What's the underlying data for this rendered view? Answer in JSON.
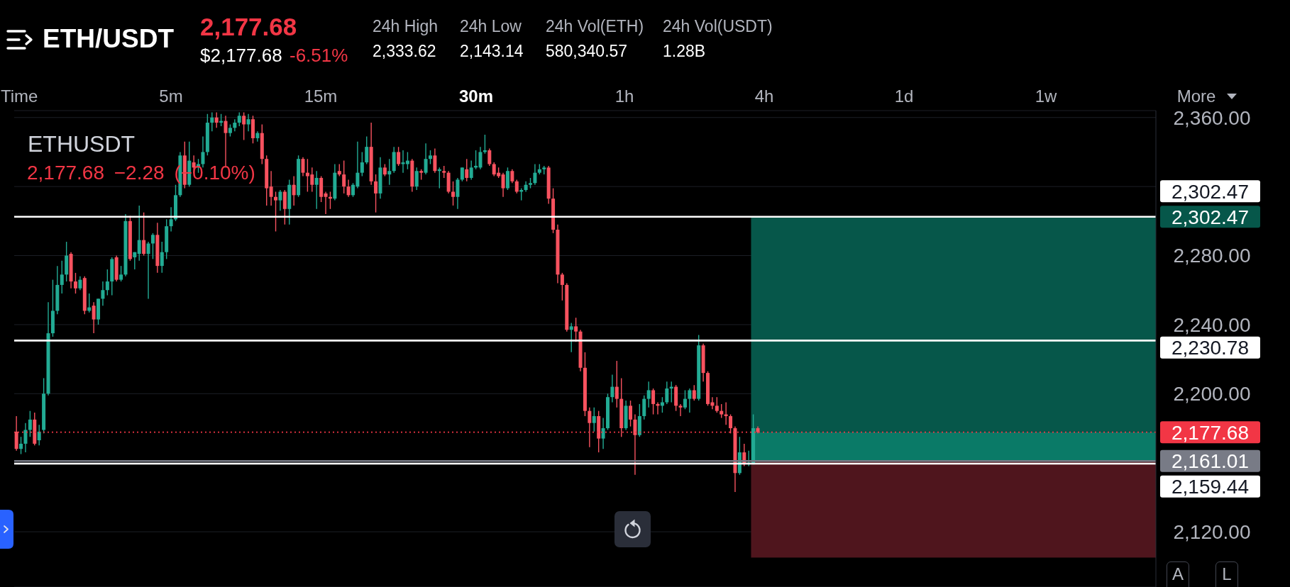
{
  "chart_data": {
    "type": "candlestick",
    "title": "ETH/USDT",
    "annotations": [
      "2,177.68",
      "$2,177.68",
      "-6.51%",
      "24h High",
      "2,333.62",
      "24h Low",
      "2,143.14",
      "24h Vol(ETH)",
      "580,340.57",
      "24h Vol(USDT)",
      "1.28B",
      "Time",
      "5m",
      "15m",
      "30m",
      "1h",
      "4h",
      "1d",
      "1w",
      "More",
      "ETHUSDT",
      "2,177.68 −2.28 (−0.10%)",
      "A",
      "L"
    ],
    "categories": [
      null,
      null,
      null,
      null,
      null,
      null,
      null,
      null,
      null,
      null,
      null,
      null,
      null,
      null,
      null,
      null,
      null,
      null,
      null,
      null,
      null,
      null,
      null,
      null,
      null,
      null,
      null,
      null,
      null,
      null,
      null,
      null,
      null,
      null,
      null,
      null,
      null,
      null,
      null,
      null,
      null,
      null,
      null,
      null,
      null,
      null,
      null,
      null,
      null,
      null,
      null,
      null,
      null,
      null,
      null,
      null,
      null,
      null,
      null,
      null,
      null,
      null,
      null,
      null,
      null,
      null,
      null,
      null,
      null,
      null,
      null,
      null,
      null,
      null,
      null,
      null,
      null,
      null,
      null,
      null,
      null,
      null,
      null,
      null,
      null,
      null,
      null,
      null,
      null,
      null,
      null,
      null,
      null,
      null,
      null,
      null,
      null,
      null,
      null,
      null,
      null,
      null,
      null,
      null,
      null,
      null,
      null,
      null,
      null,
      null,
      null,
      null,
      null,
      null,
      null,
      null,
      null,
      null,
      null,
      null,
      null,
      null,
      null,
      null,
      null,
      null,
      null,
      null,
      null,
      null,
      null,
      null,
      null,
      null,
      null,
      null,
      null,
      null,
      null,
      null,
      null,
      null,
      null,
      null,
      null,
      null,
      null,
      null,
      null,
      null,
      null,
      null,
      null,
      null,
      null,
      null,
      null,
      null,
      null,
      null,
      null,
      null,
      null,
      null,
      null,
      null,
      null,
      null,
      null,
      null,
      null,
      null,
      null,
      null,
      null,
      null,
      null,
      null,
      null,
      null,
      null,
      null,
      null,
      null,
      null,
      null,
      null,
      null,
      null,
      null,
      null,
      null,
      null,
      null,
      null,
      null,
      null,
      null,
      null,
      null,
      null,
      null,
      null,
      null,
      null,
      null,
      null,
      null,
      null,
      null,
      null,
      null,
      null,
      null,
      null,
      null,
      null,
      null,
      null,
      null,
      null,
      null,
      null,
      null,
      null,
      null,
      null,
      null,
      null,
      null,
      null,
      null,
      null,
      null,
      null,
      null,
      null,
      null,
      null,
      null,
      null,
      null,
      null,
      null,
      null,
      null,
      null,
      null,
      null,
      null,
      null
    ],
    "ohlc": [
      [
        2178,
        2187,
        2167,
        2168
      ],
      [
        2168,
        2175,
        2165,
        2171
      ],
      [
        2171,
        2183,
        2166,
        2179
      ],
      [
        2179,
        2190,
        2175,
        2185
      ],
      [
        2185,
        2189,
        2170,
        2171
      ],
      [
        2173,
        2182,
        2170,
        2178
      ],
      [
        2179,
        2209,
        2177,
        2200
      ],
      [
        2200,
        2253,
        2199,
        2235
      ],
      [
        2235,
        2266,
        2233,
        2248
      ],
      [
        2248,
        2274,
        2246,
        2263
      ],
      [
        2263,
        2277,
        2258,
        2269
      ],
      [
        2269,
        2288,
        2265,
        2280
      ],
      [
        2281,
        2282,
        2261,
        2265
      ],
      [
        2265,
        2270,
        2258,
        2261
      ],
      [
        2261,
        2268,
        2260,
        2266
      ],
      [
        2267,
        2268,
        2246,
        2248
      ],
      [
        2248,
        2258,
        2247,
        2250
      ],
      [
        2251,
        2253,
        2235,
        2243
      ],
      [
        2243,
        2255,
        2240,
        2255
      ],
      [
        2255,
        2265,
        2251,
        2260
      ],
      [
        2260,
        2272,
        2257,
        2265
      ],
      [
        2265,
        2279,
        2257,
        2278
      ],
      [
        2279,
        2280,
        2265,
        2266
      ],
      [
        2266,
        2274,
        2265,
        2269
      ],
      [
        2269,
        2304,
        2268,
        2300
      ],
      [
        2300,
        2303,
        2277,
        2278
      ],
      [
        2279,
        2282,
        2272,
        2282
      ],
      [
        2281,
        2309,
        2277,
        2289
      ],
      [
        2289,
        2305,
        2280,
        2281
      ],
      [
        2281,
        2288,
        2255,
        2287
      ],
      [
        2287,
        2293,
        2278,
        2292
      ],
      [
        2292,
        2299,
        2270,
        2274
      ],
      [
        2274,
        2288,
        2270,
        2282
      ],
      [
        2282,
        2301,
        2278,
        2297
      ],
      [
        2297,
        2308,
        2294,
        2301
      ],
      [
        2301,
        2321,
        2300,
        2315
      ],
      [
        2315,
        2340,
        2314,
        2338
      ],
      [
        2338,
        2346,
        2319,
        2321
      ],
      [
        2321,
        2346,
        2320,
        2335
      ],
      [
        2334,
        2338,
        2328,
        2331
      ],
      [
        2331,
        2336,
        2328,
        2333
      ],
      [
        2333,
        2349,
        2331,
        2340
      ],
      [
        2340,
        2362,
        2338,
        2357
      ],
      [
        2357,
        2363,
        2352,
        2360
      ],
      [
        2360,
        2363,
        2354,
        2357
      ],
      [
        2357,
        2362,
        2355,
        2358
      ],
      [
        2358,
        2361,
        2331,
        2351
      ],
      [
        2351,
        2356,
        2349,
        2354
      ],
      [
        2354,
        2359,
        2352,
        2357
      ],
      [
        2357,
        2363,
        2355,
        2361
      ],
      [
        2361,
        2363,
        2347,
        2356
      ],
      [
        2356,
        2362,
        2352,
        2359
      ],
      [
        2359,
        2361,
        2345,
        2348
      ],
      [
        2348,
        2352,
        2346,
        2351
      ],
      [
        2351,
        2356,
        2333,
        2336
      ],
      [
        2336,
        2338,
        2309,
        2319
      ],
      [
        2320,
        2329,
        2309,
        2314
      ],
      [
        2314,
        2317,
        2294,
        2312
      ],
      [
        2312,
        2318,
        2306,
        2317
      ],
      [
        2317,
        2318,
        2298,
        2307
      ],
      [
        2307,
        2324,
        2298,
        2321
      ],
      [
        2321,
        2326,
        2309,
        2315
      ],
      [
        2315,
        2338,
        2314,
        2336
      ],
      [
        2336,
        2337,
        2326,
        2328
      ],
      [
        2328,
        2336,
        2317,
        2326
      ],
      [
        2327,
        2331,
        2317,
        2321
      ],
      [
        2321,
        2329,
        2307,
        2325
      ],
      [
        2325,
        2326,
        2311,
        2314
      ],
      [
        2316,
        2317,
        2304,
        2314
      ],
      [
        2314,
        2317,
        2307,
        2313
      ],
      [
        2313,
        2333,
        2312,
        2328
      ],
      [
        2329,
        2333,
        2326,
        2327
      ],
      [
        2327,
        2335,
        2316,
        2320
      ],
      [
        2320,
        2324,
        2314,
        2315
      ],
      [
        2315,
        2322,
        2314,
        2321
      ],
      [
        2320,
        2346,
        2319,
        2328
      ],
      [
        2328,
        2340,
        2326,
        2334
      ],
      [
        2334,
        2349,
        2333,
        2343
      ],
      [
        2343,
        2357,
        2321,
        2323
      ],
      [
        2323,
        2327,
        2305,
        2316
      ],
      [
        2316,
        2337,
        2313,
        2331
      ],
      [
        2331,
        2333,
        2326,
        2327
      ],
      [
        2327,
        2336,
        2321,
        2329
      ],
      [
        2329,
        2343,
        2328,
        2340
      ],
      [
        2340,
        2343,
        2332,
        2333
      ],
      [
        2333,
        2341,
        2328,
        2334
      ],
      [
        2333,
        2340,
        2330,
        2335
      ],
      [
        2335,
        2336,
        2317,
        2320
      ],
      [
        2320,
        2331,
        2318,
        2329
      ],
      [
        2329,
        2330,
        2324,
        2328
      ],
      [
        2328,
        2345,
        2327,
        2336
      ],
      [
        2336,
        2341,
        2333,
        2338
      ],
      [
        2338,
        2342,
        2328,
        2329
      ],
      [
        2329,
        2331,
        2319,
        2330
      ],
      [
        2329,
        2332,
        2325,
        2328
      ],
      [
        2328,
        2329,
        2316,
        2317
      ],
      [
        2317,
        2323,
        2309,
        2314
      ],
      [
        2314,
        2325,
        2307,
        2324
      ],
      [
        2324,
        2331,
        2323,
        2331
      ],
      [
        2330,
        2336,
        2323,
        2325
      ],
      [
        2325,
        2335,
        2324,
        2331
      ],
      [
        2331,
        2341,
        2330,
        2332
      ],
      [
        2331,
        2343,
        2330,
        2340
      ],
      [
        2340,
        2350,
        2339,
        2341
      ],
      [
        2341,
        2342,
        2332,
        2333
      ],
      [
        2333,
        2334,
        2326,
        2327
      ],
      [
        2328,
        2331,
        2325,
        2326
      ],
      [
        2327,
        2328,
        2314,
        2319
      ],
      [
        2319,
        2331,
        2318,
        2329
      ],
      [
        2329,
        2330,
        2322,
        2323
      ],
      [
        2323,
        2324,
        2316,
        2317
      ],
      [
        2317,
        2319,
        2312,
        2318
      ],
      [
        2318,
        2323,
        2317,
        2321
      ],
      [
        2321,
        2325,
        2319,
        2322
      ],
      [
        2322,
        2333,
        2321,
        2328
      ],
      [
        2328,
        2333,
        2327,
        2330
      ],
      [
        2330,
        2332,
        2327,
        2331
      ],
      [
        2331,
        2332,
        2310,
        2313
      ],
      [
        2313,
        2319,
        2293,
        2295
      ],
      [
        2295,
        2298,
        2264,
        2269
      ],
      [
        2269,
        2270,
        2254,
        2263
      ],
      [
        2263,
        2264,
        2236,
        2237
      ],
      [
        2237,
        2241,
        2224,
        2239
      ],
      [
        2239,
        2244,
        2230,
        2236
      ],
      [
        2236,
        2237,
        2213,
        2215
      ],
      [
        2215,
        2224,
        2187,
        2190
      ],
      [
        2190,
        2192,
        2169,
        2183
      ],
      [
        2183,
        2192,
        2178,
        2187
      ],
      [
        2187,
        2190,
        2166,
        2174
      ],
      [
        2174,
        2186,
        2168,
        2180
      ],
      [
        2180,
        2200,
        2179,
        2198
      ],
      [
        2198,
        2211,
        2195,
        2204
      ],
      [
        2204,
        2219,
        2192,
        2197
      ],
      [
        2197,
        2209,
        2175,
        2180
      ],
      [
        2180,
        2196,
        2179,
        2193
      ],
      [
        2193,
        2196,
        2181,
        2185
      ],
      [
        2185,
        2188,
        2153,
        2176
      ],
      [
        2176,
        2194,
        2175,
        2187
      ],
      [
        2187,
        2199,
        2185,
        2197
      ],
      [
        2197,
        2207,
        2192,
        2202
      ],
      [
        2202,
        2203,
        2188,
        2194
      ],
      [
        2194,
        2195,
        2188,
        2193
      ],
      [
        2193,
        2198,
        2189,
        2195
      ],
      [
        2195,
        2207,
        2194,
        2203
      ],
      [
        2203,
        2207,
        2195,
        2204
      ],
      [
        2204,
        2205,
        2190,
        2193
      ],
      [
        2193,
        2194,
        2187,
        2192
      ],
      [
        2192,
        2202,
        2191,
        2197
      ],
      [
        2197,
        2203,
        2189,
        2202
      ],
      [
        2202,
        2205,
        2196,
        2197
      ],
      [
        2197,
        2234,
        2196,
        2228
      ],
      [
        2228,
        2229,
        2207,
        2212
      ],
      [
        2212,
        2213,
        2193,
        2194
      ],
      [
        2195,
        2198,
        2191,
        2193
      ],
      [
        2193,
        2198,
        2189,
        2190
      ],
      [
        2190,
        2194,
        2186,
        2188
      ],
      [
        2188,
        2195,
        2182,
        2187
      ],
      [
        2187,
        2188,
        2177,
        2180
      ],
      [
        2180,
        2181,
        2143,
        2154
      ],
      [
        2154,
        2175,
        2153,
        2166
      ],
      [
        2166,
        2171,
        2158,
        2159
      ],
      [
        2159,
        2167,
        2158,
        2160
      ],
      [
        2159,
        2188,
        2159,
        2180
      ],
      [
        2180,
        2181,
        2177,
        2177.68
      ],
      null,
      null,
      null,
      null,
      null,
      null,
      null,
      null,
      null,
      null,
      null,
      null,
      null,
      null,
      null,
      null,
      null,
      null,
      null,
      null,
      null,
      null,
      null,
      null,
      null,
      null,
      null,
      null,
      null,
      null,
      null,
      null,
      null,
      null,
      null,
      null,
      null,
      null,
      null,
      null,
      null,
      null,
      null,
      null,
      null,
      null,
      null,
      null,
      null,
      null,
      null,
      null,
      null,
      null,
      null,
      null,
      null,
      null,
      null,
      null,
      null,
      null,
      null,
      null,
      null,
      null,
      null,
      null,
      null,
      null,
      null,
      null,
      null,
      null,
      null,
      null,
      null,
      null,
      null,
      null,
      null,
      null,
      null,
      null,
      null,
      null,
      null
    ],
    "ylim": [
      2088,
      2364
    ],
    "yticks": [
      {
        "value": 2120,
        "label": "2,120.00"
      },
      {
        "value": 2160,
        "label": null
      },
      {
        "value": 2200,
        "label": "2,200.00"
      },
      {
        "value": 2240,
        "label": "2,240.00"
      },
      {
        "value": 2280,
        "label": "2,280.00"
      },
      {
        "value": 2320,
        "label": null
      },
      {
        "value": 2360,
        "label": "2,360.00"
      }
    ],
    "ref_lines": [
      {
        "axis": "y",
        "value": 2177.68,
        "label": "2,177.68",
        "color": "#f23645",
        "line_style": "dotted"
      },
      {
        "axis": "y",
        "value": 2161.01,
        "label": "2,161.01",
        "color": "#787b86"
      },
      {
        "axis": "y",
        "value": 2302.47,
        "label": "2,302.47",
        "color": "#ffffff"
      },
      {
        "axis": "y",
        "value": 2230.78,
        "label": "2,230.78",
        "color": "#ffffff"
      },
      {
        "axis": "y",
        "value": 2159.44,
        "label": "2,159.44",
        "color": "#ffffff"
      }
    ],
    "bands": [
      {
        "axis": "y",
        "from": 2177.68,
        "to": 2302.47,
        "label": "2,302.47",
        "color": "#06574a"
      },
      {
        "axis": "y",
        "from": 2161.01,
        "to": 2177.68,
        "color": "#0a7a67"
      },
      {
        "axis": "y",
        "from": 2105,
        "to": 2161.01,
        "color": "#4f151d"
      }
    ],
    "grid": "y",
    "tick_labels": "y"
  }
}
